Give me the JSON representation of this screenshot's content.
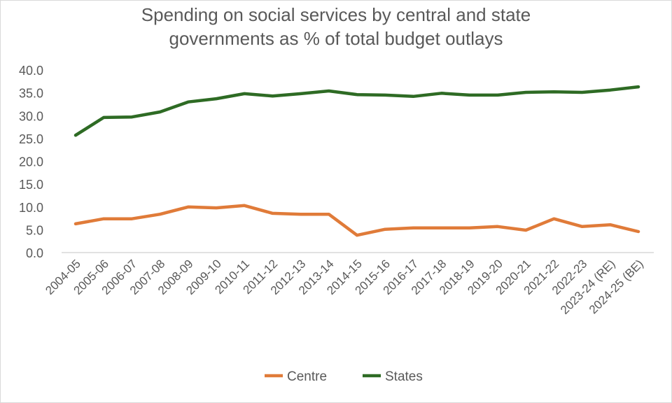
{
  "chart_data": {
    "type": "line",
    "title": "Spending on social services by central and state governments as % of total budget outlays",
    "title_lines": [
      "Spending on social services by central and state",
      "governments as % of total budget outlays"
    ],
    "xlabel": "",
    "ylabel": "",
    "ylim": [
      0,
      40
    ],
    "yticks": [
      "0.0",
      "5.0",
      "10.0",
      "15.0",
      "20.0",
      "25.0",
      "30.0",
      "35.0",
      "40.0"
    ],
    "grid": false,
    "legend_position": "bottom",
    "categories": [
      "2004-05",
      "2005-06",
      "2006-07",
      "2007-08",
      "2008-09",
      "2009-10",
      "2010-11",
      "2011-12",
      "2012-13",
      "2013-14",
      "2014-15",
      "2015-16",
      "2016-17",
      "2017-18",
      "2018-19",
      "2019-20",
      "2020-21",
      "2021-22",
      "2022-23",
      "2023-24 (RE)",
      "2024-25 (BE)"
    ],
    "series": [
      {
        "name": "Centre",
        "color": "#e07b39",
        "values": [
          6.3,
          7.4,
          7.4,
          8.4,
          10.0,
          9.8,
          10.3,
          8.6,
          8.4,
          8.4,
          3.8,
          5.1,
          5.4,
          5.4,
          5.4,
          5.7,
          4.9,
          7.4,
          5.7,
          6.1,
          4.6
        ]
      },
      {
        "name": "States",
        "color": "#2e6b24",
        "values": [
          25.7,
          29.6,
          29.7,
          30.8,
          33.0,
          33.7,
          34.8,
          34.3,
          34.8,
          35.4,
          34.6,
          34.5,
          34.2,
          34.9,
          34.5,
          34.5,
          35.1,
          35.2,
          35.1,
          35.6,
          36.3
        ]
      }
    ]
  }
}
